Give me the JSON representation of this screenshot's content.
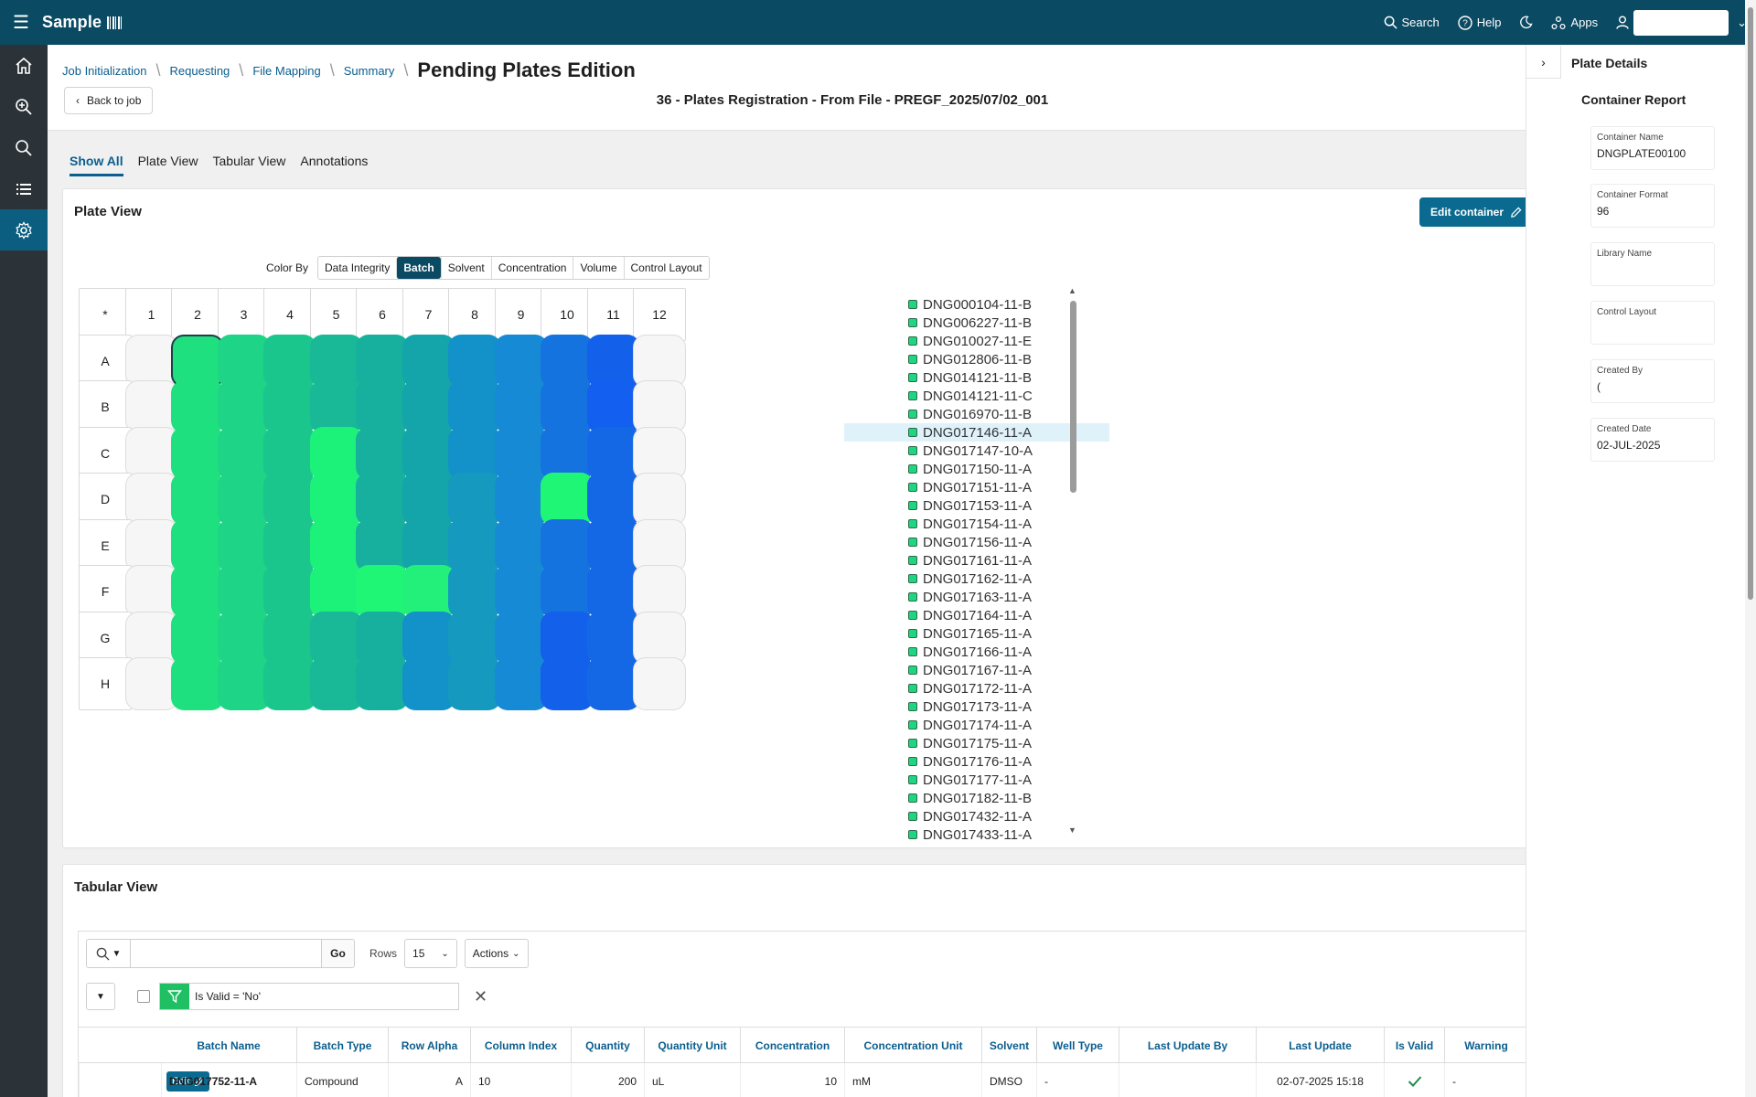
{
  "app": {
    "title": "Sample"
  },
  "topbar": {
    "search": "Search",
    "help": "Help",
    "apps": "Apps"
  },
  "breadcrumbs": [
    "Job Initialization",
    "Requesting",
    "File Mapping",
    "Summary"
  ],
  "page_title": "Pending Plates Edition",
  "back_label": "Back to job",
  "job_title": "36 - Plates Registration - From File - PREGF_2025/07/02_001",
  "tabs": [
    "Show All",
    "Plate View",
    "Tabular View",
    "Annotations"
  ],
  "plate_view": {
    "title": "Plate View",
    "edit_button": "Edit container",
    "color_by_label": "Color By",
    "color_by_options": [
      "Data Integrity",
      "Batch",
      "Solvent",
      "Concentration",
      "Volume",
      "Control Layout"
    ],
    "color_by_active": "Batch",
    "corner": "*",
    "columns": [
      "1",
      "2",
      "3",
      "4",
      "5",
      "6",
      "7",
      "8",
      "9",
      "10",
      "11",
      "12"
    ],
    "rows": [
      "A",
      "B",
      "C",
      "D",
      "E",
      "F",
      "G",
      "H"
    ],
    "well_colors": [
      [
        "",
        "#1fe07e",
        "#1ed486",
        "#1bc68d",
        "#19b896",
        "#17b09e",
        "#14a5ab",
        "#1292c8",
        "#168ad4",
        "#1573df",
        "#1360ea",
        ""
      ],
      [
        "",
        "#1fe07e",
        "#1ed486",
        "#1bc68d",
        "#19b896",
        "#17b09e",
        "#14a5ab",
        "#1292c8",
        "#168ad4",
        "#1573df",
        "#1360f0",
        ""
      ],
      [
        "",
        "#1fe07e",
        "#1ed486",
        "#1bc68d",
        "#1cf27a",
        "#17b09e",
        "#14a5ab",
        "#1292c8",
        "#168ad4",
        "#1573df",
        "#1468e6",
        ""
      ],
      [
        "",
        "#1fe07e",
        "#1ed486",
        "#1bc68d",
        "#1cf27a",
        "#17b09e",
        "#14a5ab",
        "#1599bf",
        "#168ad4",
        "#1ff676",
        "#1468e6",
        ""
      ],
      [
        "",
        "#1fe07e",
        "#1ed486",
        "#1bc68d",
        "#1cf27a",
        "#17b09e",
        "#14a5ab",
        "#1599bf",
        "#168ad4",
        "#1573df",
        "#1468e6",
        ""
      ],
      [
        "",
        "#1fe07e",
        "#1ed486",
        "#1bc68d",
        "#1cf27a",
        "#1ff676",
        "#22f07a",
        "#1599bf",
        "#168ad4",
        "#1573df",
        "#1468e6",
        ""
      ],
      [
        "",
        "#1fe07e",
        "#1ed486",
        "#1bc68d",
        "#19b896",
        "#17b09e",
        "#1292c8",
        "#1599bf",
        "#168ad4",
        "#1360ea",
        "#1468e6",
        ""
      ],
      [
        "",
        "#1fe07e",
        "#1ed486",
        "#1bc68d",
        "#19b896",
        "#17b09e",
        "#1292c8",
        "#1599bf",
        "#168ad4",
        "#1360ea",
        "#1468e6",
        ""
      ]
    ],
    "selected_well": "A2",
    "legend": [
      "DNG000104-11-B",
      "DNG006227-11-B",
      "DNG010027-11-E",
      "DNG012806-11-B",
      "DNG014121-11-B",
      "DNG014121-11-C",
      "DNG016970-11-B",
      "DNG017146-11-A",
      "DNG017147-10-A",
      "DNG017150-11-A",
      "DNG017151-11-A",
      "DNG017153-11-A",
      "DNG017154-11-A",
      "DNG017156-11-A",
      "DNG017161-11-A",
      "DNG017162-11-A",
      "DNG017163-11-A",
      "DNG017164-11-A",
      "DNG017165-11-A",
      "DNG017166-11-A",
      "DNG017167-11-A",
      "DNG017172-11-A",
      "DNG017173-11-A",
      "DNG017174-11-A",
      "DNG017175-11-A",
      "DNG017176-11-A",
      "DNG017177-11-A",
      "DNG017182-11-B",
      "DNG017432-11-A",
      "DNG017433-11-A"
    ],
    "legend_highlight": "DNG017146-11-A"
  },
  "tabular_view": {
    "title": "Tabular View",
    "search_value": "",
    "go": "Go",
    "rows_label": "Rows",
    "rows_value": "15",
    "actions": "Actions",
    "filter": "Is Valid = 'No'",
    "columns": [
      "Batch Name",
      "Batch Type",
      "Row Alpha",
      "Column Index",
      "Quantity",
      "Quantity Unit",
      "Concentration",
      "Concentration Unit",
      "Solvent",
      "Well Type",
      "Last Update By",
      "Last Update",
      "Is Valid",
      "Warning"
    ],
    "edit_label": "Edit",
    "row": {
      "batch_name": "DNG017752-11-A",
      "batch_type": "Compound",
      "row_alpha": "A",
      "column_index": "10",
      "quantity": "200",
      "quantity_unit": "uL",
      "concentration": "10",
      "concentration_unit": "mM",
      "solvent": "DMSO",
      "well_type": "-",
      "last_update_by": "",
      "last_update": "02-07-2025 15:18",
      "warning": "-"
    }
  },
  "right_panel": {
    "title": "Plate Details",
    "subtitle": "Container Report",
    "fields": [
      {
        "label": "Container Name",
        "value": "DNGPLATE00100"
      },
      {
        "label": "Container Format",
        "value": "96"
      },
      {
        "label": "Library Name",
        "value": ""
      },
      {
        "label": "Control Layout",
        "value": ""
      },
      {
        "label": "Created By",
        "value": "("
      },
      {
        "label": "Created Date",
        "value": "02-JUL-2025"
      }
    ]
  },
  "colors": {
    "header": "#0b4a63",
    "nav": "#2c3338",
    "accent": "#0b5e8f",
    "button": "#0b6a8f",
    "filter": "#1fbf63"
  }
}
